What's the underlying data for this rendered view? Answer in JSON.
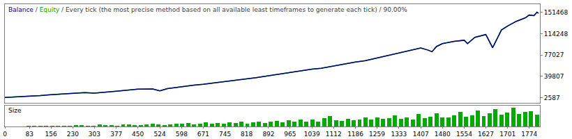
{
  "chart_data": [
    {
      "type": "line",
      "title": "Balance / Equity / Every tick (the most precise method based on all available least timeframes to generate each tick) / 90.00%",
      "x": [
        0,
        40,
        83,
        120,
        156,
        200,
        230,
        270,
        303,
        330,
        377,
        420,
        450,
        500,
        524,
        550,
        598,
        640,
        671,
        710,
        745,
        780,
        818,
        850,
        892,
        930,
        965,
        1000,
        1039,
        1070,
        1112,
        1150,
        1186,
        1220,
        1259,
        1300,
        1333,
        1370,
        1407,
        1430,
        1445,
        1460,
        1480,
        1520,
        1554,
        1565,
        1590,
        1627,
        1650,
        1680,
        1701,
        1730,
        1760,
        1774,
        1790,
        1800,
        1805
      ],
      "series": [
        {
          "name": "Balance",
          "color": "#000080",
          "values": [
            3000,
            3900,
            5000,
            6500,
            8000,
            9500,
            10500,
            11500,
            10500,
            12000,
            14000,
            16000,
            17500,
            18000,
            14500,
            18500,
            22000,
            24500,
            26000,
            28500,
            30000,
            32500,
            35000,
            37500,
            41000,
            44000,
            46500,
            49000,
            52500,
            54000,
            58000,
            62000,
            65000,
            67500,
            72000,
            77000,
            81000,
            85000,
            89500,
            86000,
            83000,
            92000,
            97000,
            101000,
            103000,
            97000,
            108000,
            113000,
            90000,
            121000,
            128000,
            136000,
            142000,
            147000,
            146000,
            152000,
            150000
          ]
        },
        {
          "name": "Equity",
          "color": "#00aa00",
          "values": [
            3000,
            3900,
            5000,
            6500,
            8000,
            9500,
            10500,
            11500,
            10500,
            12000,
            14000,
            16000,
            17500,
            18000,
            14500,
            18500,
            22000,
            24500,
            26000,
            28500,
            30000,
            32500,
            35000,
            37500,
            41000,
            44000,
            46500,
            49000,
            52500,
            54000,
            58000,
            62000,
            65000,
            67500,
            72000,
            77000,
            81000,
            85000,
            89500,
            86000,
            83000,
            92000,
            97000,
            101000,
            103000,
            97000,
            108000,
            113000,
            90000,
            121000,
            128000,
            136000,
            142000,
            147000,
            146000,
            152000,
            150000
          ]
        }
      ],
      "xlim": [
        0,
        1810
      ],
      "ylim": [
        -6000,
        166000
      ],
      "yticks": [
        2587,
        39807,
        77027,
        114248,
        151468
      ],
      "grid": false,
      "tick_labels": "y"
    },
    {
      "type": "bar",
      "title": "Size",
      "x": [
        0,
        20,
        40,
        60,
        80,
        100,
        120,
        140,
        160,
        180,
        200,
        220,
        240,
        260,
        280,
        300,
        320,
        340,
        360,
        380,
        400,
        420,
        440,
        460,
        480,
        500,
        520,
        540,
        560,
        580,
        600,
        620,
        640,
        660,
        680,
        700,
        720,
        740,
        760,
        780,
        800,
        820,
        840,
        860,
        880,
        900,
        920,
        940,
        960,
        980,
        1000,
        1020,
        1040,
        1060,
        1080,
        1100,
        1120,
        1140,
        1160,
        1180,
        1200,
        1220,
        1240,
        1260,
        1280,
        1300,
        1320,
        1340,
        1360,
        1380,
        1400,
        1420,
        1440,
        1460,
        1480,
        1500,
        1520,
        1540,
        1560,
        1580,
        1600,
        1620,
        1640,
        1660,
        1680,
        1700,
        1720,
        1740,
        1760,
        1780,
        1800
      ],
      "values": [
        0.1,
        0.1,
        0.1,
        0.1,
        0.2,
        0.2,
        0.3,
        0.3,
        0.2,
        0.2,
        0.3,
        0.4,
        0.6,
        0.5,
        0.3,
        0.4,
        0.8,
        0.5,
        0.6,
        0.4,
        0.7,
        0.9,
        0.6,
        0.5,
        0.8,
        1.0,
        0.7,
        0.6,
        0.9,
        1.2,
        1.0,
        1.3,
        0.9,
        1.1,
        1.5,
        1.2,
        1.4,
        1.0,
        1.6,
        1.3,
        1.8,
        1.2,
        1.5,
        2.0,
        1.4,
        1.8,
        2.2,
        1.5,
        2.4,
        1.9,
        2.6,
        2.0,
        2.8,
        1.8,
        3.2,
        4.0,
        2.5,
        2.2,
        3.0,
        2.4,
        2.8,
        3.4,
        2.6,
        3.6,
        2.9,
        3.2,
        4.2,
        3.0,
        3.5,
        2.8,
        4.8,
        3.2,
        3.8,
        5.0,
        3.4,
        3.6,
        4.2,
        5.6,
        3.8,
        4.4,
        6.2,
        4.0,
        5.0,
        6.8,
        4.6,
        5.4,
        7.2,
        4.8,
        5.6,
        6.0,
        4.5
      ],
      "color": "#00aa00",
      "xlim": [
        0,
        1810
      ],
      "xticks": [
        0,
        83,
        156,
        230,
        303,
        377,
        450,
        524,
        598,
        671,
        745,
        818,
        892,
        965,
        1039,
        1112,
        1186,
        1259,
        1333,
        1407,
        1480,
        1554,
        1627,
        1701,
        1774
      ],
      "ylim": [
        0,
        8
      ],
      "grid": false,
      "tick_labels": "x"
    }
  ]
}
